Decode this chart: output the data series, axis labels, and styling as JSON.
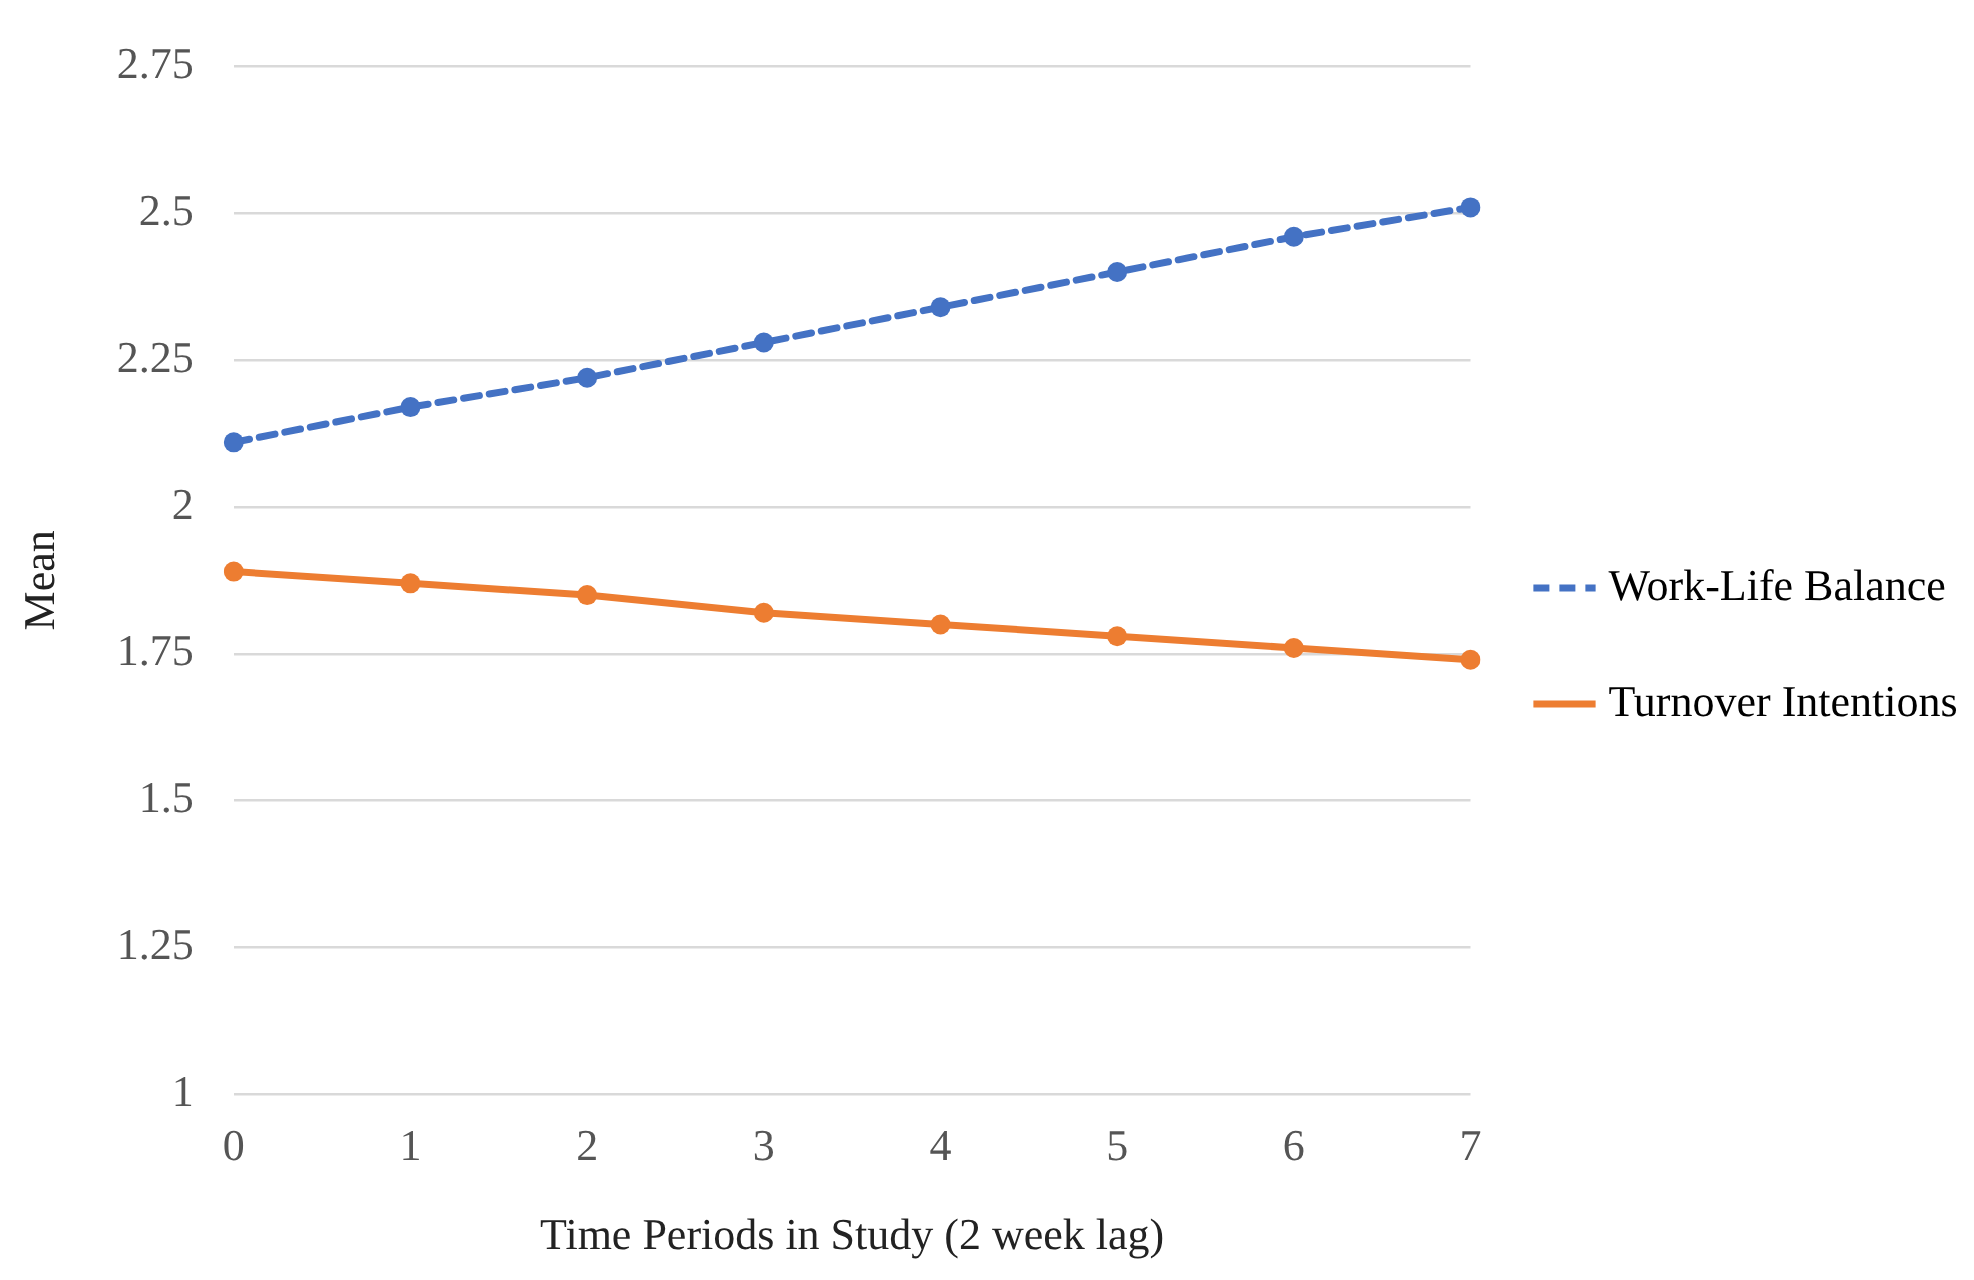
{
  "chart_data": {
    "type": "line",
    "xlabel": "Time Periods in Study (2 week lag)",
    "ylabel": "Mean",
    "categories": [
      "0",
      "1",
      "2",
      "3",
      "4",
      "5",
      "6",
      "7"
    ],
    "series": [
      {
        "name": "Work-Life Balance",
        "color": "#4472c4",
        "line_style": "dashed",
        "values": [
          2.11,
          2.17,
          2.22,
          2.28,
          2.34,
          2.4,
          2.46,
          2.51
        ]
      },
      {
        "name": "Turnover Intentions",
        "color": "#ed7d31",
        "line_style": "solid",
        "values": [
          1.89,
          1.87,
          1.85,
          1.82,
          1.8,
          1.78,
          1.76,
          1.74
        ]
      }
    ],
    "ylim": [
      1,
      2.75
    ],
    "yticks": [
      1,
      1.25,
      1.5,
      1.75,
      2,
      2.25,
      2.5,
      2.75
    ],
    "grid": "y",
    "legend": "right",
    "marker": "circle"
  }
}
